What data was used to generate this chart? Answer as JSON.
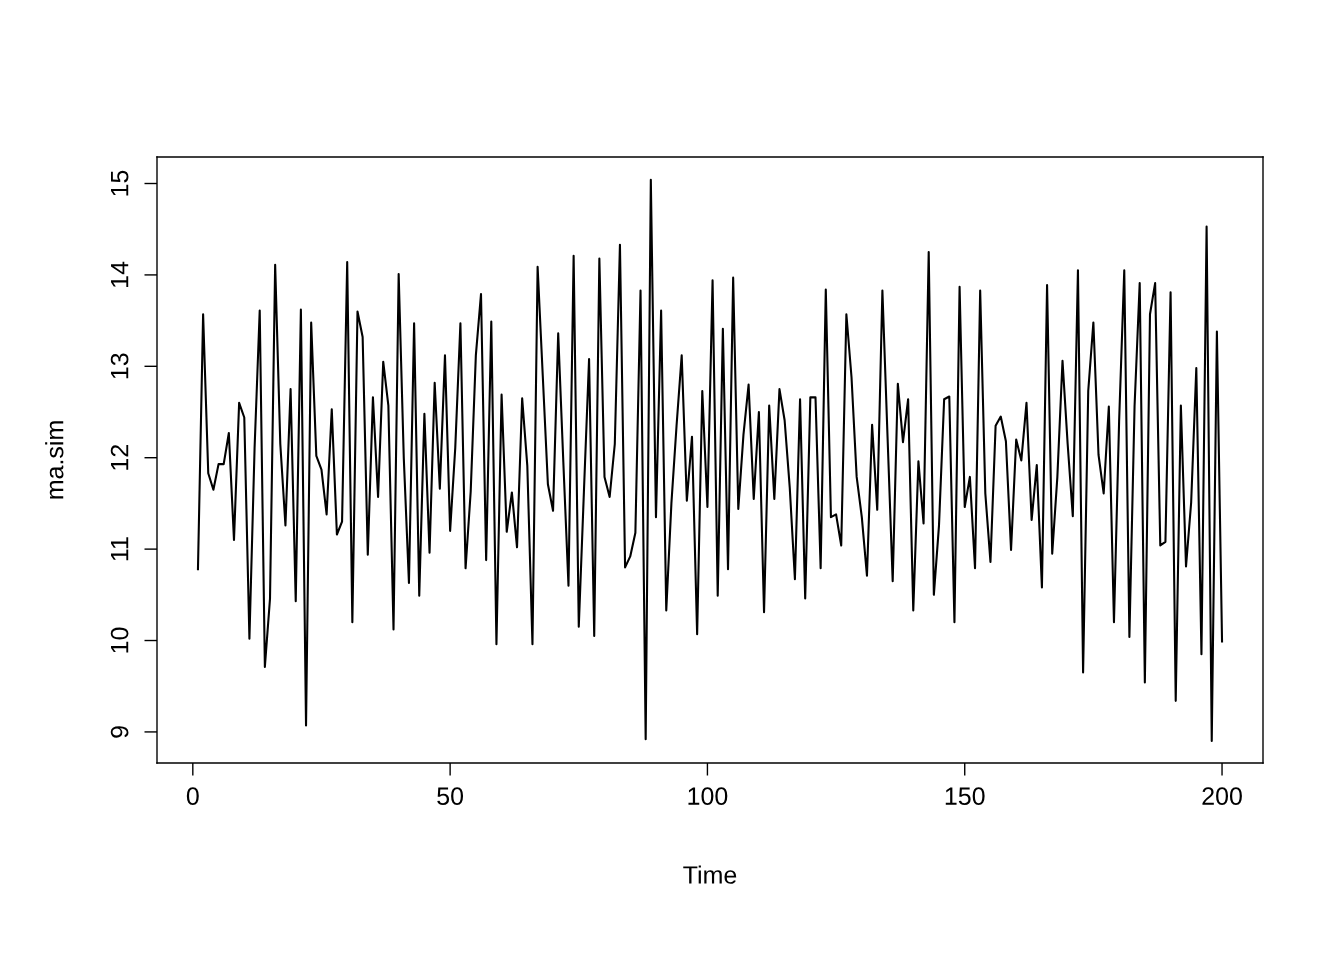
{
  "chart_data": {
    "type": "line",
    "xlabel": "Time",
    "ylabel": "ma.sim",
    "x": [
      1,
      2,
      3,
      4,
      5,
      6,
      7,
      8,
      9,
      10,
      11,
      12,
      13,
      14,
      15,
      16,
      17,
      18,
      19,
      20,
      21,
      22,
      23,
      24,
      25,
      26,
      27,
      28,
      29,
      30,
      31,
      32,
      33,
      34,
      35,
      36,
      37,
      38,
      39,
      40,
      41,
      42,
      43,
      44,
      45,
      46,
      47,
      48,
      49,
      50,
      51,
      52,
      53,
      54,
      55,
      56,
      57,
      58,
      59,
      60,
      61,
      62,
      63,
      64,
      65,
      66,
      67,
      68,
      69,
      70,
      71,
      72,
      73,
      74,
      75,
      76,
      77,
      78,
      79,
      80,
      81,
      82,
      83,
      84,
      85,
      86,
      87,
      88,
      89,
      90,
      91,
      92,
      93,
      94,
      95,
      96,
      97,
      98,
      99,
      100,
      101,
      102,
      103,
      104,
      105,
      106,
      107,
      108,
      109,
      110,
      111,
      112,
      113,
      114,
      115,
      116,
      117,
      118,
      119,
      120,
      121,
      122,
      123,
      124,
      125,
      126,
      127,
      128,
      129,
      130,
      131,
      132,
      133,
      134,
      135,
      136,
      137,
      138,
      139,
      140,
      141,
      142,
      143,
      144,
      145,
      146,
      147,
      148,
      149,
      150,
      151,
      152,
      153,
      154,
      155,
      156,
      157,
      158,
      159,
      160,
      161,
      162,
      163,
      164,
      165,
      166,
      167,
      168,
      169,
      170,
      171,
      172,
      173,
      174,
      175,
      176,
      177,
      178,
      179,
      180,
      181,
      182,
      183,
      184,
      185,
      186,
      187,
      188,
      189,
      190,
      191,
      192,
      193,
      194,
      195,
      196,
      197,
      198,
      199,
      200
    ],
    "series": [
      {
        "color": "#000000",
        "values": [
          10.78,
          13.57,
          11.83,
          11.65,
          11.93,
          11.93,
          12.27,
          11.1,
          12.6,
          12.44,
          10.02,
          12.1,
          13.61,
          9.71,
          10.46,
          14.11,
          12.15,
          11.26,
          12.75,
          10.43,
          13.62,
          9.07,
          13.48,
          12.02,
          11.87,
          11.38,
          12.53,
          11.16,
          11.3,
          14.14,
          10.2,
          13.6,
          13.32,
          10.94,
          12.66,
          11.57,
          13.05,
          12.57,
          10.12,
          14.01,
          11.99,
          10.63,
          13.47,
          10.49,
          12.48,
          10.96,
          12.82,
          11.66,
          13.12,
          11.2,
          12.11,
          13.47,
          10.79,
          11.63,
          13.12,
          13.79,
          10.88,
          13.49,
          9.96,
          12.69,
          11.19,
          11.62,
          11.02,
          12.65,
          11.91,
          9.96,
          14.09,
          12.9,
          11.71,
          11.42,
          13.36,
          11.95,
          10.6,
          14.21,
          10.15,
          11.63,
          13.08,
          10.05,
          14.18,
          11.79,
          11.57,
          12.15,
          14.33,
          10.8,
          10.92,
          11.18,
          13.83,
          8.92,
          15.04,
          11.35,
          13.61,
          10.33,
          11.5,
          12.35,
          13.12,
          11.53,
          12.23,
          10.07,
          12.73,
          11.46,
          13.94,
          10.49,
          13.41,
          10.78,
          13.97,
          11.44,
          12.25,
          12.8,
          11.55,
          12.5,
          10.31,
          12.57,
          11.55,
          12.75,
          12.41,
          11.67,
          10.67,
          12.64,
          10.46,
          12.66,
          12.66,
          10.79,
          13.84,
          11.35,
          11.38,
          11.04,
          13.57,
          12.88,
          11.79,
          11.35,
          10.71,
          12.36,
          11.43,
          13.83,
          12.23,
          10.65,
          12.81,
          12.17,
          12.64,
          10.33,
          11.96,
          11.28,
          14.25,
          10.5,
          11.26,
          12.64,
          12.67,
          10.2,
          13.87,
          11.46,
          11.79,
          10.79,
          13.83,
          11.61,
          10.86,
          12.35,
          12.45,
          12.18,
          10.99,
          12.2,
          11.97,
          12.6,
          11.32,
          11.92,
          10.58,
          13.89,
          10.95,
          11.79,
          13.06,
          12.15,
          11.36,
          14.05,
          9.65,
          12.73,
          13.48,
          12.03,
          11.61,
          12.56,
          10.2,
          12.4,
          14.05,
          10.04,
          12.56,
          13.91,
          9.54,
          13.57,
          13.91,
          11.04,
          11.08,
          13.81,
          9.34,
          12.57,
          10.81,
          11.51,
          12.98,
          9.85,
          14.53,
          8.9,
          13.38,
          9.99
        ]
      }
    ],
    "xlim": [
      -6.96,
      207.96
    ],
    "xticks": [
      0,
      50,
      100,
      150,
      200
    ],
    "ylim": [
      8.66,
      15.29
    ],
    "yticks": [
      9,
      10,
      11,
      12,
      13,
      14,
      15
    ],
    "grid": false,
    "legend": false,
    "line_style": "solid",
    "marker": "none"
  }
}
